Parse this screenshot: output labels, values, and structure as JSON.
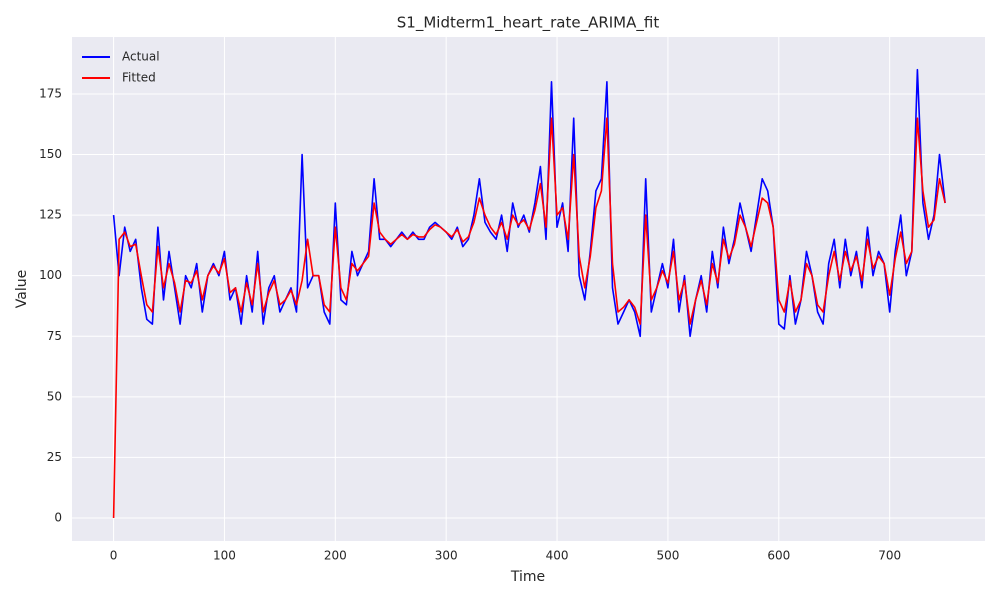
{
  "chart_data": {
    "type": "line",
    "title": "S1_Midterm1_heart_rate_ARIMA_fit",
    "xlabel": "Time",
    "ylabel": "Value",
    "xlim": [
      -37.5,
      786
    ],
    "ylim": [
      -9.5,
      198.5
    ],
    "xticks": [
      0,
      100,
      200,
      300,
      400,
      500,
      600,
      700
    ],
    "yticks": [
      0,
      25,
      50,
      75,
      100,
      125,
      150,
      175
    ],
    "grid": true,
    "legend": "upper left",
    "x": [
      0,
      5,
      10,
      15,
      20,
      25,
      30,
      35,
      40,
      45,
      50,
      55,
      60,
      65,
      70,
      75,
      80,
      85,
      90,
      95,
      100,
      105,
      110,
      115,
      120,
      125,
      130,
      135,
      140,
      145,
      150,
      155,
      160,
      165,
      170,
      175,
      180,
      185,
      190,
      195,
      200,
      205,
      210,
      215,
      220,
      225,
      230,
      235,
      240,
      245,
      250,
      255,
      260,
      265,
      270,
      275,
      280,
      285,
      290,
      295,
      300,
      305,
      310,
      315,
      320,
      325,
      330,
      335,
      340,
      345,
      350,
      355,
      360,
      365,
      370,
      375,
      380,
      385,
      390,
      395,
      400,
      405,
      410,
      415,
      420,
      425,
      430,
      435,
      440,
      445,
      450,
      455,
      460,
      465,
      470,
      475,
      480,
      485,
      490,
      495,
      500,
      505,
      510,
      515,
      520,
      525,
      530,
      535,
      540,
      545,
      550,
      555,
      560,
      565,
      570,
      575,
      580,
      585,
      590,
      595,
      600,
      605,
      610,
      615,
      620,
      625,
      630,
      635,
      640,
      645,
      650,
      655,
      660,
      665,
      670,
      675,
      680,
      685,
      690,
      695,
      700,
      705,
      710,
      715,
      720,
      725,
      730,
      735,
      740,
      745,
      750
    ],
    "series": [
      {
        "name": "Actual",
        "color": "#0000ff",
        "values": [
          125,
          100,
          120,
          110,
          115,
          95,
          82,
          80,
          120,
          90,
          110,
          95,
          80,
          100,
          95,
          105,
          85,
          100,
          105,
          100,
          110,
          90,
          95,
          80,
          100,
          85,
          110,
          80,
          95,
          100,
          85,
          90,
          95,
          85,
          150,
          95,
          100,
          100,
          85,
          80,
          130,
          90,
          88,
          110,
          100,
          105,
          110,
          140,
          115,
          115,
          112,
          115,
          118,
          115,
          118,
          115,
          115,
          120,
          122,
          120,
          118,
          115,
          120,
          112,
          115,
          125,
          140,
          122,
          118,
          115,
          125,
          110,
          130,
          120,
          125,
          118,
          130,
          145,
          115,
          180,
          120,
          130,
          110,
          165,
          100,
          90,
          110,
          135,
          140,
          180,
          95,
          80,
          85,
          90,
          85,
          75,
          140,
          85,
          95,
          105,
          95,
          115,
          85,
          100,
          75,
          90,
          100,
          85,
          110,
          95,
          120,
          105,
          115,
          130,
          120,
          110,
          125,
          140,
          135,
          120,
          80,
          78,
          100,
          80,
          90,
          110,
          100,
          85,
          80,
          105,
          115,
          95,
          115,
          100,
          110,
          95,
          120,
          100,
          110,
          105,
          85,
          110,
          125,
          100,
          110,
          185,
          130,
          115,
          125,
          150,
          130
        ]
      },
      {
        "name": "Fitted",
        "color": "#ff0000",
        "values": [
          0,
          115,
          118,
          112,
          113,
          100,
          88,
          85,
          112,
          95,
          105,
          97,
          85,
          98,
          97,
          102,
          90,
          100,
          104,
          101,
          107,
          93,
          95,
          85,
          97,
          88,
          105,
          85,
          93,
          98,
          88,
          90,
          94,
          88,
          98,
          115,
          100,
          100,
          88,
          85,
          120,
          95,
          90,
          105,
          102,
          105,
          108,
          130,
          118,
          115,
          113,
          115,
          117,
          115,
          117,
          116,
          116,
          119,
          121,
          120,
          118,
          116,
          119,
          114,
          116,
          122,
          132,
          125,
          120,
          117,
          122,
          115,
          125,
          121,
          123,
          119,
          127,
          138,
          120,
          165,
          125,
          128,
          115,
          150,
          108,
          95,
          108,
          128,
          135,
          165,
          105,
          85,
          87,
          90,
          87,
          80,
          125,
          90,
          95,
          102,
          97,
          110,
          90,
          98,
          80,
          90,
          98,
          88,
          105,
          97,
          115,
          107,
          113,
          125,
          120,
          112,
          122,
          132,
          130,
          120,
          90,
          85,
          98,
          85,
          90,
          105,
          100,
          88,
          85,
          100,
          110,
          98,
          110,
          102,
          108,
          98,
          115,
          103,
          108,
          105,
          92,
          107,
          118,
          105,
          110,
          165,
          135,
          120,
          123,
          140,
          130
        ]
      }
    ]
  }
}
